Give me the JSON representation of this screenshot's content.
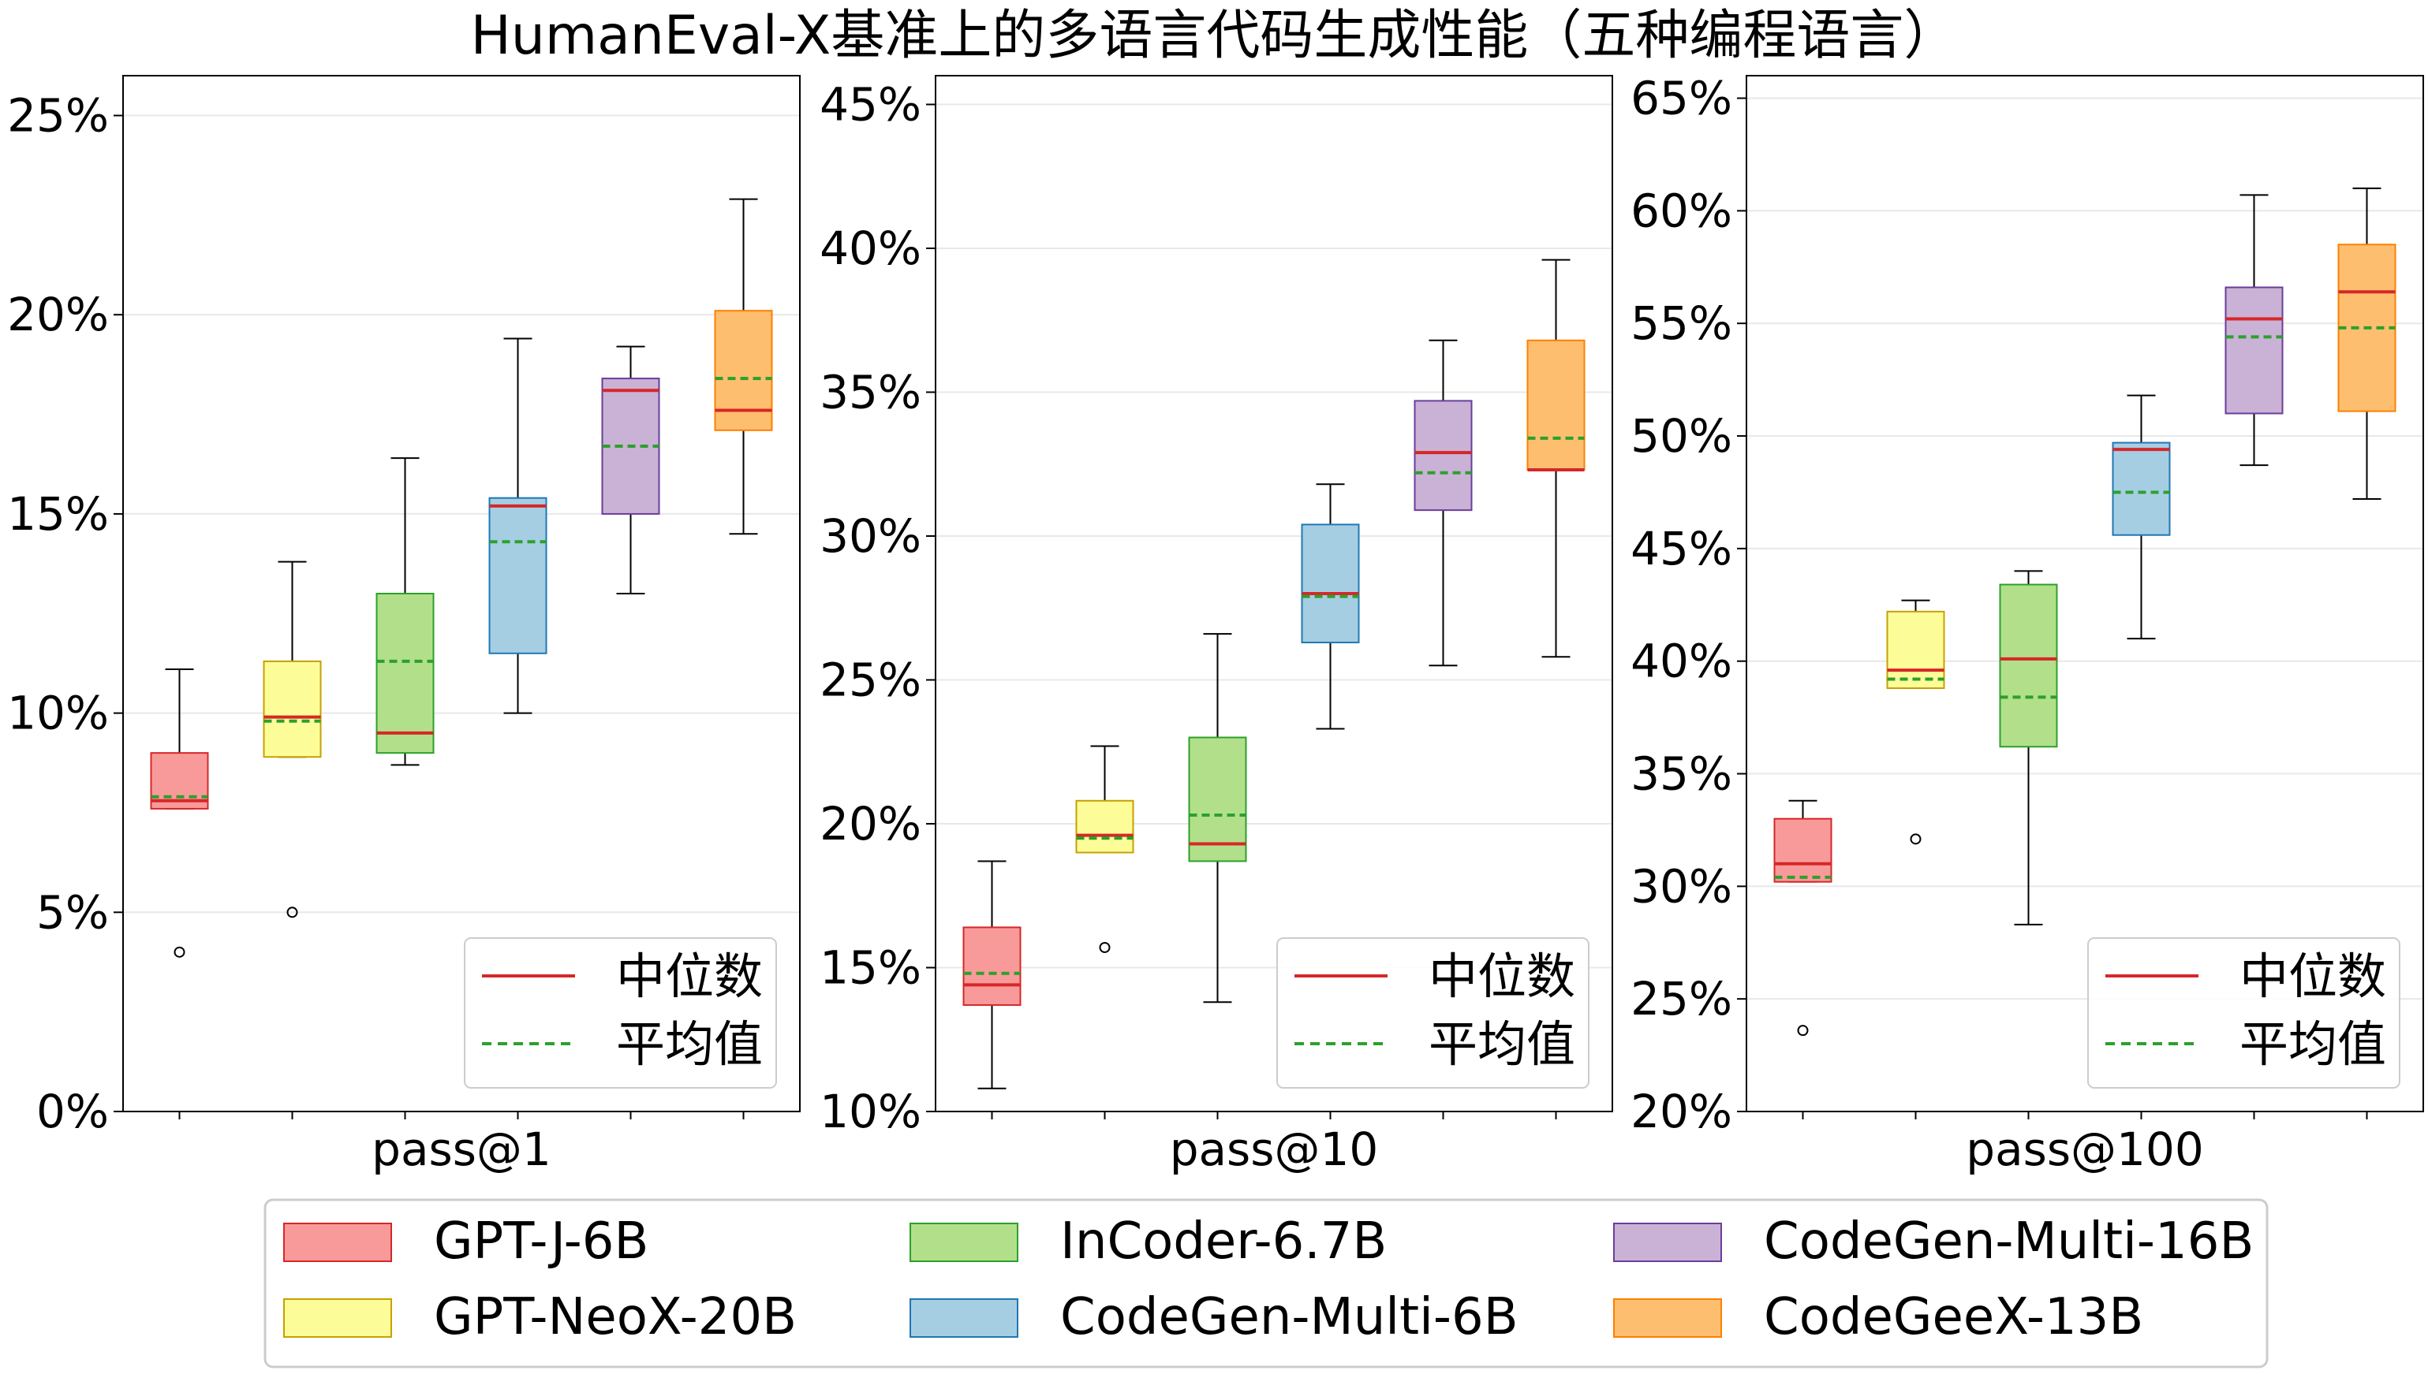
{
  "title": "HumanEval-X基准上的多语言代码生成性能（五种编程语言）",
  "legend": {
    "median_label": "中位数",
    "mean_label": "平均值",
    "models": [
      {
        "name": "GPT-J-6B",
        "fill": "#f99a9a",
        "edge": "#d62728"
      },
      {
        "name": "GPT-NeoX-20B",
        "fill": "#fcfc99",
        "edge": "#c8a000"
      },
      {
        "name": "InCoder-6.7B",
        "fill": "#b2e08a",
        "edge": "#2ca02c"
      },
      {
        "name": "CodeGen-Multi-6B",
        "fill": "#a6cee3",
        "edge": "#1f78b4"
      },
      {
        "name": "CodeGen-Multi-16B",
        "fill": "#cab2d6",
        "edge": "#6a3d9a"
      },
      {
        "name": "CodeGeeX-13B",
        "fill": "#fdbf6f",
        "edge": "#ff7f00"
      }
    ]
  },
  "colors": {
    "median": "#d62728",
    "mean": "#2ca02c"
  },
  "chart_data": [
    {
      "type": "box",
      "xlabel": "pass@1",
      "ylim": [
        0,
        26
      ],
      "yticks": [
        0,
        5,
        10,
        15,
        20,
        25
      ],
      "tick_format": "percent",
      "grid": true,
      "legend_position": "lower-right",
      "boxes": [
        {
          "model": "GPT-J-6B",
          "whisker_low": 7.6,
          "q1": 7.6,
          "median": 7.8,
          "mean": 7.9,
          "q3": 9.0,
          "whisker_high": 11.1,
          "outliers": [
            4.0
          ]
        },
        {
          "model": "GPT-NeoX-20B",
          "whisker_low": 8.9,
          "q1": 8.9,
          "median": 9.9,
          "mean": 9.8,
          "q3": 11.3,
          "whisker_high": 13.8,
          "outliers": [
            5.0
          ]
        },
        {
          "model": "InCoder-6.7B",
          "whisker_low": 8.7,
          "q1": 9.0,
          "median": 9.5,
          "mean": 11.3,
          "q3": 13.0,
          "whisker_high": 16.4,
          "outliers": []
        },
        {
          "model": "CodeGen-Multi-6B",
          "whisker_low": 10.0,
          "q1": 11.5,
          "median": 15.2,
          "mean": 14.3,
          "q3": 15.4,
          "whisker_high": 19.4,
          "outliers": []
        },
        {
          "model": "CodeGen-Multi-16B",
          "whisker_low": 13.0,
          "q1": 15.0,
          "median": 18.1,
          "mean": 16.7,
          "q3": 18.4,
          "whisker_high": 19.2,
          "outliers": []
        },
        {
          "model": "CodeGeeX-13B",
          "whisker_low": 14.5,
          "q1": 17.1,
          "median": 17.6,
          "mean": 18.4,
          "q3": 20.1,
          "whisker_high": 22.9,
          "outliers": []
        }
      ]
    },
    {
      "type": "box",
      "xlabel": "pass@10",
      "ylim": [
        10,
        46
      ],
      "yticks": [
        10,
        15,
        20,
        25,
        30,
        35,
        40,
        45
      ],
      "tick_format": "percent",
      "grid": true,
      "legend_position": "lower-right",
      "boxes": [
        {
          "model": "GPT-J-6B",
          "whisker_low": 10.8,
          "q1": 13.7,
          "median": 14.4,
          "mean": 14.8,
          "q3": 16.4,
          "whisker_high": 18.7,
          "outliers": []
        },
        {
          "model": "GPT-NeoX-20B",
          "whisker_low": 19.0,
          "q1": 19.0,
          "median": 19.6,
          "mean": 19.5,
          "q3": 20.8,
          "whisker_high": 22.7,
          "outliers": [
            15.7
          ]
        },
        {
          "model": "InCoder-6.7B",
          "whisker_low": 13.8,
          "q1": 18.7,
          "median": 19.3,
          "mean": 20.3,
          "q3": 23.0,
          "whisker_high": 26.6,
          "outliers": []
        },
        {
          "model": "CodeGen-Multi-6B",
          "whisker_low": 23.3,
          "q1": 26.3,
          "median": 28.0,
          "mean": 27.9,
          "q3": 30.4,
          "whisker_high": 31.8,
          "outliers": []
        },
        {
          "model": "CodeGen-Multi-16B",
          "whisker_low": 25.5,
          "q1": 30.9,
          "median": 32.9,
          "mean": 32.2,
          "q3": 34.7,
          "whisker_high": 36.8,
          "outliers": []
        },
        {
          "model": "CodeGeeX-13B",
          "whisker_low": 25.8,
          "q1": 32.3,
          "median": 32.3,
          "mean": 33.4,
          "q3": 36.8,
          "whisker_high": 39.6,
          "outliers": []
        }
      ]
    },
    {
      "type": "box",
      "xlabel": "pass@100",
      "ylim": [
        20,
        66
      ],
      "yticks": [
        20,
        25,
        30,
        35,
        40,
        45,
        50,
        55,
        60,
        65
      ],
      "tick_format": "percent",
      "grid": true,
      "legend_position": "lower-right",
      "boxes": [
        {
          "model": "GPT-J-6B",
          "whisker_low": 30.2,
          "q1": 30.2,
          "median": 31.0,
          "mean": 30.4,
          "q3": 33.0,
          "whisker_high": 33.8,
          "outliers": [
            23.6
          ]
        },
        {
          "model": "GPT-NeoX-20B",
          "whisker_low": 38.8,
          "q1": 38.8,
          "median": 39.6,
          "mean": 39.2,
          "q3": 42.2,
          "whisker_high": 42.7,
          "outliers": [
            32.1
          ]
        },
        {
          "model": "InCoder-6.7B",
          "whisker_low": 28.3,
          "q1": 36.2,
          "median": 40.1,
          "mean": 38.4,
          "q3": 43.4,
          "whisker_high": 44.0,
          "outliers": []
        },
        {
          "model": "CodeGen-Multi-6B",
          "whisker_low": 41.0,
          "q1": 45.6,
          "median": 49.4,
          "mean": 47.5,
          "q3": 49.7,
          "whisker_high": 51.8,
          "outliers": []
        },
        {
          "model": "CodeGen-Multi-16B",
          "whisker_low": 48.7,
          "q1": 51.0,
          "median": 55.2,
          "mean": 54.4,
          "q3": 56.6,
          "whisker_high": 60.7,
          "outliers": []
        },
        {
          "model": "CodeGeeX-13B",
          "whisker_low": 47.2,
          "q1": 51.1,
          "median": 56.4,
          "mean": 54.8,
          "q3": 58.5,
          "whisker_high": 61.0,
          "outliers": []
        }
      ]
    }
  ]
}
